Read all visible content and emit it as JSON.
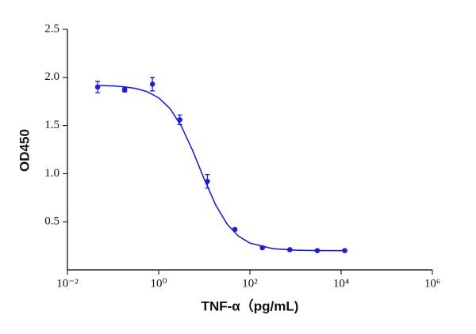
{
  "chart_data": {
    "type": "scatter",
    "x_label": "TNF-α（pg/mL)",
    "y_label": "OD450",
    "log_x": true,
    "grid": false,
    "xlim": [
      0.01,
      1000000
    ],
    "xticks": [
      {
        "value": 0.01,
        "label": "10⁻²"
      },
      {
        "value": 1,
        "label": "10⁰"
      },
      {
        "value": 100,
        "label": "10²"
      },
      {
        "value": 10000,
        "label": "10⁴"
      },
      {
        "value": 1000000,
        "label": "10⁶"
      }
    ],
    "ylim": [
      0,
      2.5
    ],
    "yticks": [
      0.5,
      {
        "value": 1,
        "label": "1.0"
      },
      1.5,
      {
        "value": 2,
        "label": "2.0"
      },
      2.5
    ],
    "color": "#1f1fcf",
    "x": [
      0.046,
      0.18,
      0.73,
      2.9,
      11.7,
      46.9,
      187.5,
      750,
      3000,
      12000
    ],
    "values": [
      1.9,
      1.87,
      1.93,
      1.56,
      0.92,
      0.42,
      0.23,
      0.21,
      0.2,
      0.2
    ],
    "errors": [
      0.06,
      0.02,
      0.07,
      0.05,
      0.07,
      0.01,
      0.01,
      0.01,
      0.01,
      0.01
    ],
    "curve": {
      "x": [
        0.05,
        0.1,
        0.178,
        0.316,
        0.562,
        1,
        1.78,
        3.16,
        5.62,
        10,
        17.8,
        31.6,
        56.2,
        100,
        316,
        1000,
        3162,
        11220
      ],
      "y": [
        1.916,
        1.911,
        1.902,
        1.885,
        1.851,
        1.788,
        1.675,
        1.492,
        1.235,
        0.942,
        0.674,
        0.475,
        0.35,
        0.279,
        0.22,
        0.205,
        0.201,
        0.2
      ]
    }
  }
}
